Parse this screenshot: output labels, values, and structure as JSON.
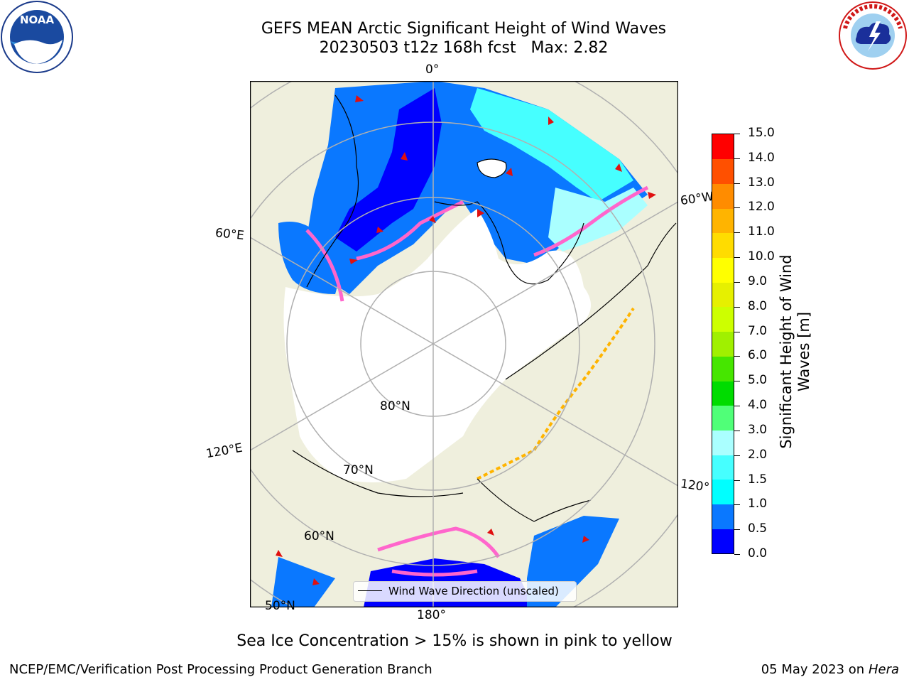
{
  "title": {
    "line1": "GEFS MEAN Arctic Significant Height of Wind Waves",
    "line2": "20230503 t12z 168h fcst   Max: 2.82"
  },
  "map": {
    "lon_labels": [
      "0°",
      "60°E",
      "120°E",
      "180°",
      "120°",
      "60°W"
    ],
    "lat_labels": [
      "80°N",
      "70°N",
      "60°N",
      "50°N"
    ],
    "legend_label": "Wind Wave Direction (unscaled)",
    "colors": {
      "land": "#efefdd",
      "ice_free_ocean_none": "#ffffff",
      "grid": "#b0b0b0",
      "arrow": "#e01010"
    }
  },
  "colorbar": {
    "label_line1": "Significant Height of Wind",
    "label_line2": "Waves [m]",
    "ticks": [
      "0.0",
      "0.5",
      "1.0",
      "1.5",
      "2.0",
      "3.0",
      "4.0",
      "5.0",
      "6.0",
      "7.0",
      "8.0",
      "9.0",
      "10.0",
      "11.0",
      "12.0",
      "13.0",
      "14.0",
      "15.0"
    ],
    "colors": [
      "#0000ff",
      "#0a78ff",
      "#00ffff",
      "#46ffff",
      "#aaffff",
      "#50ff78",
      "#00dc00",
      "#46e600",
      "#a0f000",
      "#cdff00",
      "#e6f000",
      "#ffff00",
      "#ffdc00",
      "#ffb400",
      "#ff8c00",
      "#ff5000",
      "#ff0000"
    ]
  },
  "note": "Sea Ice Concentration > 15% is shown in pink to yellow",
  "footer": {
    "left": "NCEP/EMC/Verification Post Processing Product Generation Branch",
    "right_date": "05 May 2023 on",
    "right_machine": "Hera"
  },
  "logos": {
    "noaa": "NOAA",
    "nws": "NATIONAL WEATHER SERVICE"
  }
}
